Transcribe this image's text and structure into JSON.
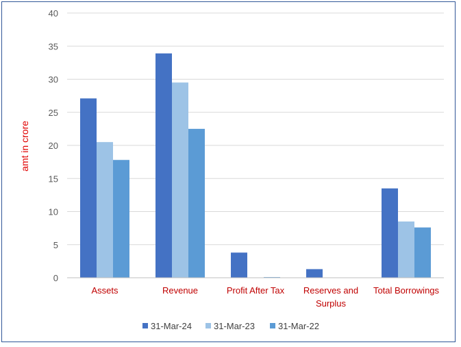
{
  "chart_data": {
    "type": "bar",
    "categories": [
      [
        "Assets"
      ],
      [
        "Revenue"
      ],
      [
        "Profit After Tax"
      ],
      [
        "Reserves and",
        "Surplus"
      ],
      [
        "Total Borrowings"
      ]
    ],
    "series": [
      {
        "name": "31-Mar-24",
        "values": [
          27.1,
          33.9,
          3.8,
          1.3,
          13.5
        ],
        "color": "#4472c4"
      },
      {
        "name": "31-Mar-23",
        "values": [
          20.5,
          29.5,
          0.05,
          0,
          8.5
        ],
        "color": "#9dc3e6"
      },
      {
        "name": "31-Mar-22",
        "values": [
          17.8,
          22.5,
          0.1,
          0,
          7.6
        ],
        "color": "#5b9bd5"
      }
    ],
    "xlabel": "",
    "ylabel": "amt in crore",
    "ylim": [
      0,
      40
    ],
    "yticks": [
      0,
      5,
      10,
      15,
      20,
      25,
      30,
      35,
      40
    ],
    "grid": true,
    "legend_position": "bottom",
    "category_label_color": "#c00000",
    "ylabel_color": "#e00000",
    "gridline_color": "#d9d9d9"
  }
}
